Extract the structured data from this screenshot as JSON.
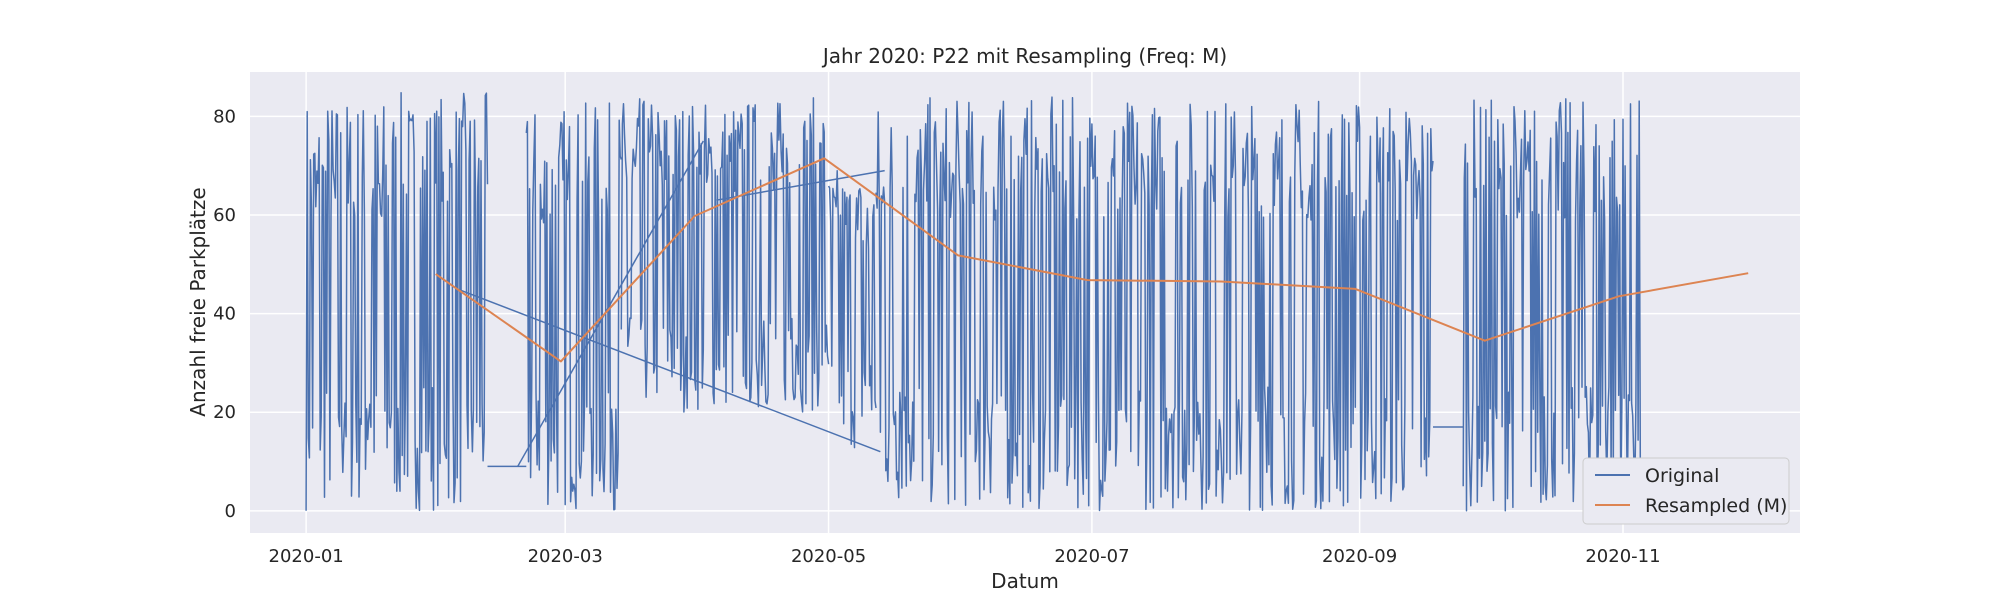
{
  "chart_data": {
    "type": "line",
    "title": "Jahr 2020: P22 mit Resampling (Freq: M)",
    "xlabel": "Datum",
    "ylabel": "Anzahl freie Parkplätze",
    "x_type": "date",
    "xlim": [
      "2019-12-19",
      "2020-12-12"
    ],
    "ylim": [
      -4.5,
      89
    ],
    "y_ticks": [
      0,
      20,
      40,
      60,
      80
    ],
    "x_ticks": [
      "2020-01-01",
      "2020-03-01",
      "2020-05-01",
      "2020-07-01",
      "2020-09-01",
      "2020-11-01"
    ],
    "x_tick_labels": [
      "2020-01",
      "2020-03",
      "2020-05",
      "2020-07",
      "2020-09",
      "2020-11"
    ],
    "grid": true,
    "legend_position": "lower-right",
    "colors": {
      "original": "#4c72b0",
      "resampled": "#dd8452",
      "plot_bg": "#eaeaf2",
      "grid": "#ffffff"
    },
    "series": [
      {
        "name": "Original",
        "style": "dense-oscillation",
        "segments": [
          {
            "x": [
              "2020-01-01",
              "2020-02-12"
            ],
            "min": 0,
            "max": 85
          },
          {
            "x": [
              "2020-02-12",
              "2020-02-21"
            ],
            "y": [
              9,
              9
            ]
          },
          {
            "x": [
              "2020-02-21",
              "2020-03-14"
            ],
            "min": 0,
            "max": 83
          },
          {
            "x": [
              "2020-03-14",
              "2020-05-01"
            ],
            "min": 20,
            "max": 84
          },
          {
            "x": [
              "2020-05-01",
              "2020-05-12"
            ],
            "min": 12,
            "max": 70
          },
          {
            "x": [
              "2020-05-12",
              "2020-09-18"
            ],
            "min": 0,
            "max": 84
          },
          {
            "x": [
              "2020-09-18",
              "2020-09-25"
            ],
            "y": [
              17,
              17
            ]
          },
          {
            "x": [
              "2020-09-25",
              "2020-11-05"
            ],
            "min": 0,
            "max": 84
          }
        ],
        "connectors": [
          {
            "x": [
              "2020-02-05",
              "2020-05-13"
            ],
            "y": [
              45,
              12
            ]
          },
          {
            "x": [
              "2020-02-19",
              "2020-04-02"
            ],
            "y": [
              9,
              75
            ]
          },
          {
            "x": [
              "2020-04-05",
              "2020-05-14"
            ],
            "y": [
              63,
              69
            ]
          }
        ]
      },
      {
        "name": "Resampled (M)",
        "x": [
          "2020-01-31",
          "2020-02-29",
          "2020-03-31",
          "2020-04-30",
          "2020-05-31",
          "2020-06-30",
          "2020-07-31",
          "2020-08-31",
          "2020-09-30",
          "2020-10-31",
          "2020-11-30"
        ],
        "y": [
          48.0,
          30.3,
          59.8,
          71.5,
          51.8,
          46.8,
          46.5,
          45.0,
          34.5,
          43.5,
          48.2
        ]
      }
    ]
  }
}
